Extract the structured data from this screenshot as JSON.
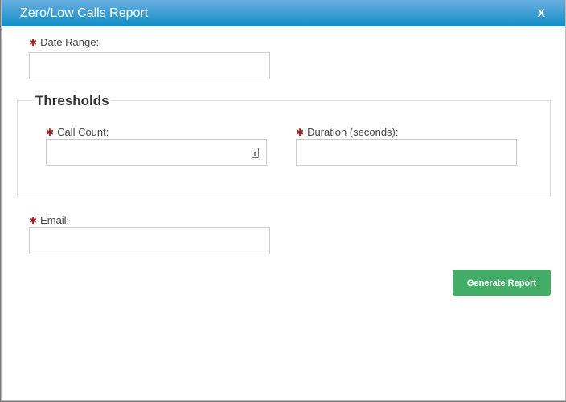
{
  "dialog": {
    "title": "Zero/Low Calls Report",
    "close_label": "X"
  },
  "form": {
    "required_marker": "✱",
    "date_range": {
      "label": "Date Range:",
      "value": ""
    },
    "thresholds": {
      "legend": "Thresholds",
      "call_count": {
        "label": "Call Count:",
        "value": ""
      },
      "duration": {
        "label": "Duration (seconds):",
        "value": ""
      }
    },
    "email": {
      "label": "Email:",
      "value": ""
    },
    "generate_button": "Generate Report"
  },
  "colors": {
    "header": "#1a93c9",
    "button": "#43ad68",
    "required": "#a02020"
  }
}
